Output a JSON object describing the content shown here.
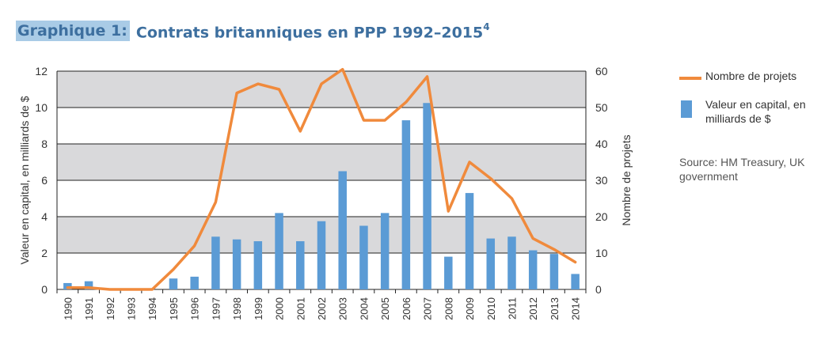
{
  "title": {
    "prefix": "Graphique 1:",
    "main": "Contrats britanniques en PPP 1992–2015",
    "footnote": "4"
  },
  "legend": {
    "line_label": "Nombre de projets",
    "bar_label": "Valeur en capital, en milliards de $"
  },
  "source": "Source:  HM Treasury, UK government",
  "colors": {
    "bar": "#5b9bd5",
    "line": "#f08a3c",
    "band": "#d9d9db",
    "title": "#3d6f9f"
  },
  "chart_data": {
    "type": "bar",
    "categories": [
      "1990",
      "1991",
      "1992",
      "1993",
      "1994",
      "1995",
      "1996",
      "1997",
      "1998",
      "1999",
      "2000",
      "2001",
      "2002",
      "2003",
      "2004",
      "2005",
      "2006",
      "2007",
      "2008",
      "2009",
      "2010",
      "2011",
      "2012",
      "2013",
      "2014"
    ],
    "series": [
      {
        "name": "Valeur en capital, en milliards de $",
        "type": "bar",
        "axis": "left",
        "values": [
          0.35,
          0.45,
          0,
          0,
          0,
          0.6,
          0.7,
          2.9,
          2.75,
          2.65,
          4.2,
          2.65,
          3.75,
          6.5,
          3.5,
          4.2,
          9.3,
          10.25,
          1.8,
          5.3,
          2.8,
          2.9,
          2.15,
          1.95,
          0.85
        ]
      },
      {
        "name": "Nombre de projets",
        "type": "line",
        "axis": "right",
        "values": [
          0.5,
          0.5,
          0,
          0,
          0,
          5.5,
          12,
          24,
          54,
          56.5,
          55,
          43.5,
          56.5,
          60.5,
          46.5,
          46.5,
          51.5,
          58.5,
          21.5,
          35,
          30.5,
          25,
          14,
          11,
          7.5
        ]
      }
    ],
    "ylabel": "Valeur en capital, en milliards de $",
    "ylabel_right": "Nombre de projets",
    "ylim": [
      0,
      12
    ],
    "ylim_right": [
      0,
      60
    ],
    "yticks": [
      "0",
      "2",
      "4",
      "6",
      "8",
      "10",
      "12"
    ],
    "yticks_right": [
      "0",
      "10",
      "20",
      "30",
      "40",
      "50",
      "60"
    ],
    "bands": "alternating gray horizontal bands",
    "legend_position": "right"
  }
}
